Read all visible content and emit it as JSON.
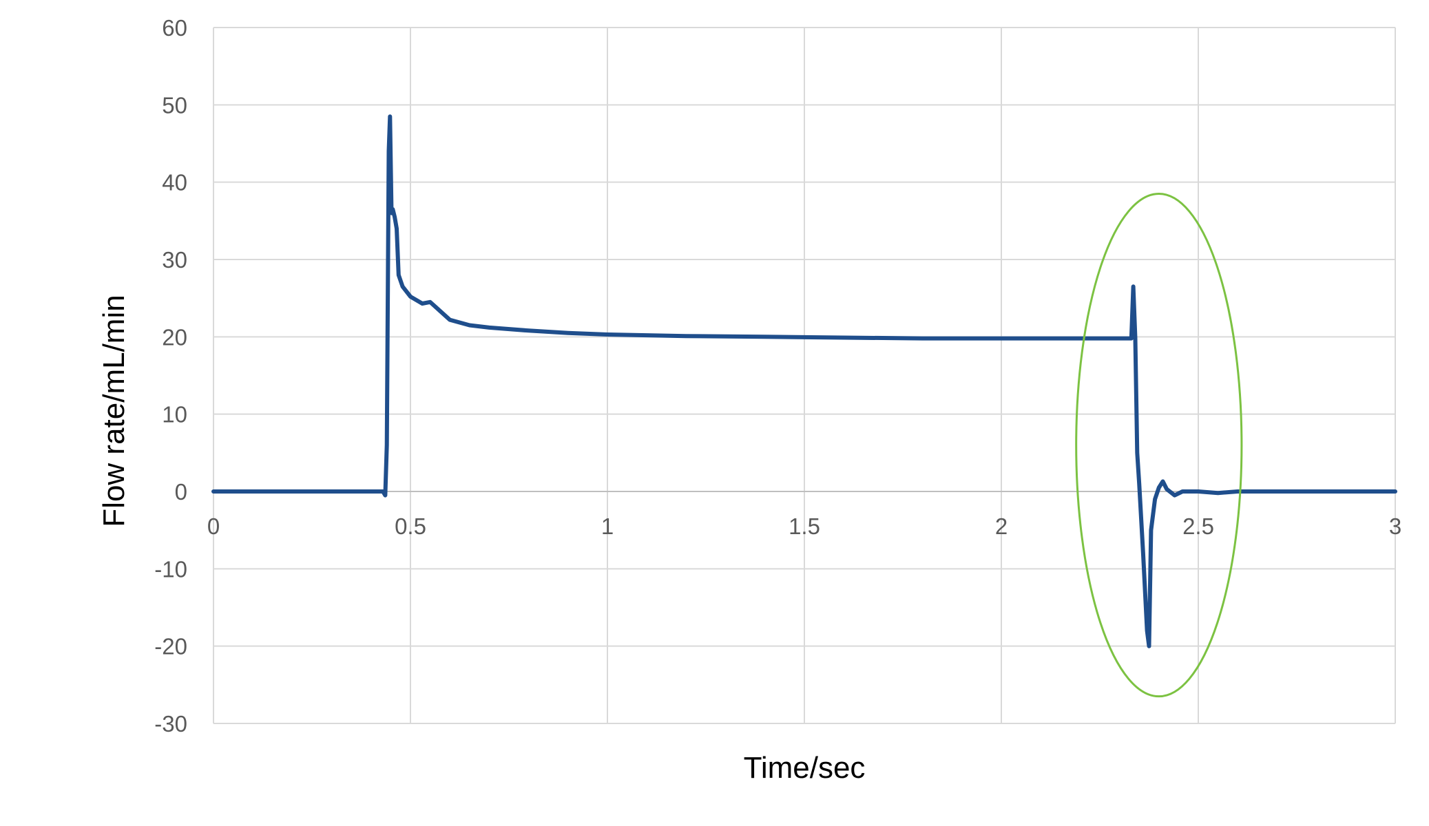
{
  "chart_data": {
    "type": "line",
    "title": "",
    "xlabel": "Time/sec",
    "ylabel": "Flow rate/mL/min",
    "xlim": [
      0,
      3
    ],
    "ylim": [
      -30,
      60
    ],
    "x_ticks": [
      0,
      0.5,
      1,
      1.5,
      2,
      2.5,
      3
    ],
    "x_tick_labels": [
      "0",
      "0.5",
      "1",
      "1.5",
      "2",
      "2.5",
      "3"
    ],
    "y_ticks": [
      -30,
      -20,
      -10,
      0,
      10,
      20,
      30,
      40,
      50,
      60
    ],
    "y_tick_labels": [
      "-30",
      "-20",
      "-10",
      "0",
      "10",
      "20",
      "30",
      "40",
      "50",
      "60"
    ],
    "grid": true,
    "legend": "none",
    "series": [
      {
        "color": "#1f4e8c",
        "x": [
          0,
          0.2,
          0.43,
          0.436,
          0.44,
          0.445,
          0.448,
          0.452,
          0.455,
          0.46,
          0.465,
          0.47,
          0.48,
          0.5,
          0.53,
          0.55,
          0.6,
          0.65,
          0.7,
          0.8,
          0.9,
          1.0,
          1.2,
          1.4,
          1.6,
          1.8,
          2.0,
          2.2,
          2.33,
          2.335,
          2.34,
          2.345,
          2.35,
          2.36,
          2.37,
          2.375,
          2.38,
          2.39,
          2.4,
          2.41,
          2.42,
          2.44,
          2.46,
          2.5,
          2.55,
          2.6,
          2.8,
          3.0
        ],
        "y": [
          0,
          0,
          0,
          -0.5,
          6,
          44,
          48.5,
          36,
          36.5,
          35.5,
          34,
          28,
          26.5,
          25.2,
          24.3,
          24.5,
          22.2,
          21.5,
          21.2,
          20.8,
          20.5,
          20.3,
          20.1,
          20.0,
          19.9,
          19.8,
          19.8,
          19.8,
          19.8,
          26.5,
          19.8,
          5,
          1,
          -8,
          -18,
          -20,
          -5,
          -1,
          0.5,
          1.3,
          0.3,
          -0.5,
          0,
          0,
          -0.2,
          0,
          0,
          0
        ]
      }
    ],
    "annotations": [
      {
        "shape": "ellipse",
        "color": "#7cc242",
        "cx": 2.4,
        "cy": 6,
        "rx": 0.21,
        "ry": 32.5
      }
    ]
  }
}
